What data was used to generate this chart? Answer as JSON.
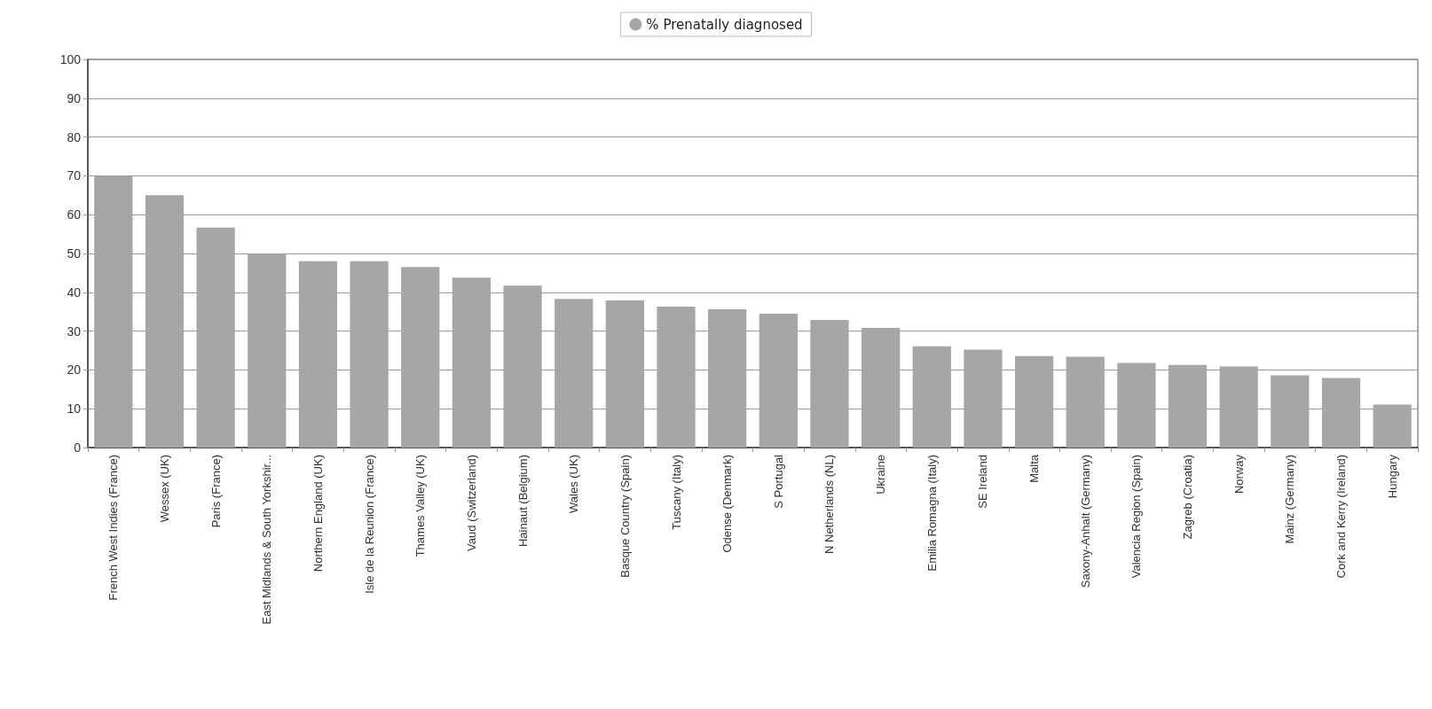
{
  "chart_data": {
    "type": "bar",
    "categories": [
      "French West Indies (France)",
      "Wessex (UK)",
      "Paris (France)",
      "East Midlands & South Yorkshir...",
      "Northern England (UK)",
      "Isle de la Reunion (France)",
      "Thames Valley (UK)",
      "Vaud (Switzerland)",
      "Hainaut (Belgium)",
      "Wales (UK)",
      "Basque Country (Spain)",
      "Tuscany (Italy)",
      "Odense (Denmark)",
      "S Portugal",
      "N Netherlands (NL)",
      "Ukraine",
      "Emilia Romagna (Italy)",
      "SE Ireland",
      "Malta",
      "Saxony-Anhalt (Germany)",
      "Valencia Region (Spain)",
      "Zagreb (Croatia)",
      "Norway",
      "Mainz (Germany)",
      "Cork and Kerry (Ireland)",
      "Hungary"
    ],
    "series": [
      {
        "name": "% Prenatally diagnosed",
        "color": "#a6a6a6",
        "values": [
          70,
          65,
          56.7,
          49.9,
          48,
          48,
          46.5,
          43.8,
          41.7,
          38.3,
          37.9,
          36.3,
          35.6,
          34.5,
          32.9,
          30.8,
          26.1,
          25.2,
          23.6,
          23.4,
          21.8,
          21.3,
          20.9,
          18.6,
          17.9,
          11.1
        ]
      }
    ],
    "ylim": [
      0,
      100
    ],
    "yticks": [
      0,
      10,
      20,
      30,
      40,
      50,
      60,
      70,
      80,
      90,
      100
    ],
    "grid": "y",
    "legend": "top"
  }
}
